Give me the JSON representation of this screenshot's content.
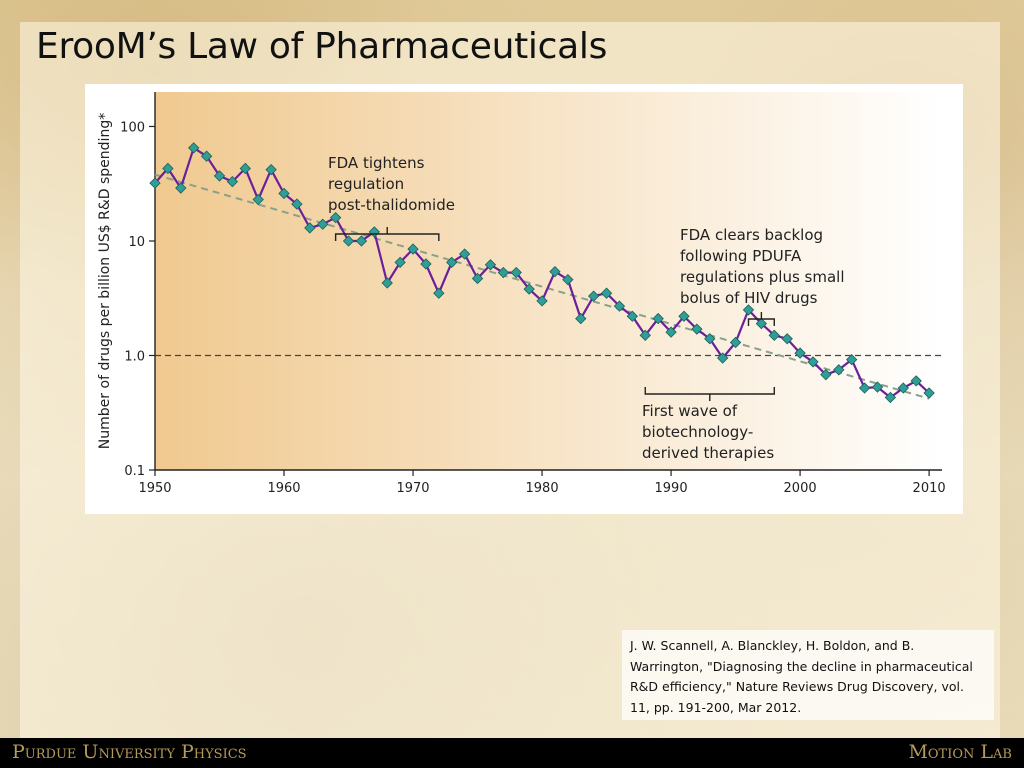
{
  "slide": {
    "title": "ErooM’s Law of Pharmaceuticals",
    "citation": "J. W. Scannell, A. Blanckley, H. Boldon, and B. Warrington, \"Diagnosing the decline in pharmaceutical R&D efficiency,\" Nature Reviews Drug Discovery, vol. 11, pp. 191-200, Mar 2012.",
    "footer_left": "Purdue University Physics",
    "footer_right": "Motion Lab"
  },
  "colors": {
    "series": "#6b1f9a",
    "marker": "#2f9e96",
    "trend": "#8aa08a",
    "gradient_left": "#f0c98f",
    "gradient_right": "#ffffff"
  },
  "chart_data": {
    "type": "line",
    "yscale": "log",
    "title": "",
    "xlabel": "",
    "ylabel": "Number of drugs per billion US$ R&D spending*",
    "xlim": [
      1950,
      2011
    ],
    "ylim": [
      0.1,
      200
    ],
    "xticks": [
      1950,
      1960,
      1970,
      1980,
      1990,
      2000,
      2010
    ],
    "yticks": [
      {
        "value": 0.1,
        "label": "0.1"
      },
      {
        "value": 1,
        "label": "1.0"
      },
      {
        "value": 10,
        "label": "10"
      },
      {
        "value": 100,
        "label": "100"
      }
    ],
    "reference_line": {
      "value": 1,
      "style": "dashed"
    },
    "trend_line": {
      "start": [
        1950,
        38
      ],
      "end": [
        2010,
        0.42
      ],
      "style": "dashed"
    },
    "series": [
      {
        "name": "Drugs per billion US$ R&D spending",
        "x": [
          1950,
          1951,
          1952,
          1953,
          1954,
          1955,
          1956,
          1957,
          1958,
          1959,
          1960,
          1961,
          1962,
          1963,
          1964,
          1965,
          1966,
          1967,
          1968,
          1969,
          1970,
          1971,
          1972,
          1973,
          1974,
          1975,
          1976,
          1977,
          1978,
          1979,
          1980,
          1981,
          1982,
          1983,
          1984,
          1985,
          1986,
          1987,
          1988,
          1989,
          1990,
          1991,
          1992,
          1993,
          1994,
          1995,
          1996,
          1997,
          1998,
          1999,
          2000,
          2001,
          2002,
          2003,
          2004,
          2005,
          2006,
          2007,
          2008,
          2009,
          2010
        ],
        "values": [
          32,
          43,
          29,
          65,
          55,
          37,
          33,
          43,
          23,
          42,
          26,
          21,
          13,
          14,
          16,
          10,
          10,
          12,
          4.3,
          6.5,
          8.5,
          6.3,
          3.5,
          6.5,
          7.7,
          4.7,
          6.2,
          5.3,
          5.3,
          3.8,
          3,
          5.4,
          4.6,
          2.1,
          3.3,
          3.5,
          2.7,
          2.2,
          1.5,
          2.1,
          1.6,
          2.2,
          1.7,
          1.4,
          0.95,
          1.3,
          2.5,
          1.9,
          1.5,
          1.4,
          1.05,
          0.88,
          0.68,
          0.75,
          0.92,
          0.52,
          0.53,
          0.43,
          0.52,
          0.6,
          0.47
        ]
      }
    ],
    "annotations": [
      {
        "lines": [
          "FDA tightens",
          "regulation",
          "post-thalidomide"
        ],
        "year_start": 1964,
        "year_end": 1972,
        "bracket": "below-text"
      },
      {
        "lines": [
          "FDA clears backlog",
          "following PDUFA",
          "regulations plus small",
          "bolus of HIV drugs"
        ],
        "year_start": 1996,
        "year_end": 1998,
        "bracket": "below-text"
      },
      {
        "lines": [
          "First wave of",
          "biotechnology-",
          "derived therapies"
        ],
        "year_start": 1988,
        "year_end": 1998,
        "bracket": "above-text"
      }
    ]
  }
}
